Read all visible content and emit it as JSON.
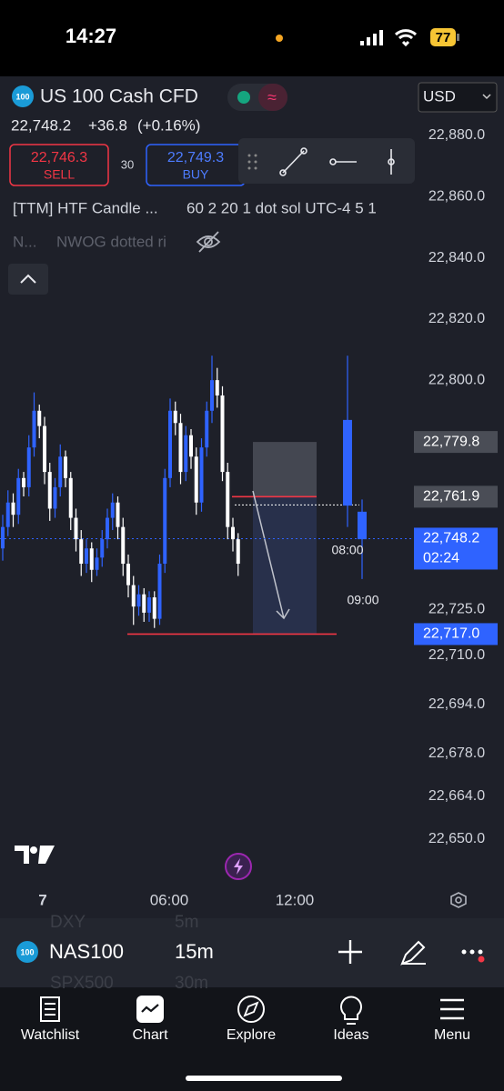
{
  "status_bar": {
    "time": "14:27",
    "battery": "77"
  },
  "header": {
    "badge": "100",
    "symbol": "US 100 Cash CFD",
    "currency": "USD",
    "last": "22,748.2",
    "change": "+36.8",
    "change_pct": "(+0.16%)",
    "sell_price": "22,746.3",
    "sell": "SELL",
    "spread": "30",
    "buy_price": "22,749.3",
    "buy": "BUY"
  },
  "indicators": [
    {
      "name": "[TTM] HTF Candle ...",
      "params": "60 2 20 1 dot sol UTC-4 5 1"
    },
    {
      "name": "N...",
      "params": "NWOG dotted ri"
    }
  ],
  "chart_data": {
    "type": "candlestick",
    "up_color": "#2f63ff",
    "down_color": "#ffffff",
    "ylim": [
      22636,
      22899
    ],
    "yticks": [
      {
        "value": 22880,
        "label": "22,880.0"
      },
      {
        "value": 22860,
        "label": "22,860.0"
      },
      {
        "value": 22840,
        "label": "22,840.0"
      },
      {
        "value": 22820,
        "label": "22,820.0"
      },
      {
        "value": 22800,
        "label": "22,800.0"
      },
      {
        "value": 22725,
        "label": "22,725.0"
      },
      {
        "value": 22710,
        "label": "22,710.0"
      },
      {
        "value": 22694,
        "label": "22,694.0"
      },
      {
        "value": 22678,
        "label": "22,678.0"
      },
      {
        "value": 22664,
        "label": "22,664.0"
      },
      {
        "value": 22650,
        "label": "22,650.0"
      }
    ],
    "xticks": [
      "7",
      "06:00",
      "12:00"
    ],
    "open": [
      22745,
      22752,
      22760,
      22756,
      22768,
      22765,
      22778,
      22790,
      22785,
      22770,
      22758,
      22765,
      22775,
      22768,
      22755,
      22748,
      22740,
      22745,
      22738,
      22742,
      22748,
      22755,
      22760,
      22752,
      22740,
      22733,
      22726,
      22730,
      22724,
      22729,
      22722,
      22740,
      22768,
      22790,
      22786,
      22770,
      22782,
      22775,
      22760,
      22778,
      22790,
      22800,
      22795,
      22770,
      22752,
      22748
    ],
    "high": [
      22756,
      22764,
      22763,
      22771,
      22770,
      22782,
      22796,
      22792,
      22788,
      22773,
      22768,
      22779,
      22777,
      22770,
      22758,
      22751,
      22748,
      22747,
      22745,
      22751,
      22758,
      22763,
      22762,
      22755,
      22743,
      22736,
      22733,
      22732,
      22731,
      22731,
      22743,
      22771,
      22794,
      22793,
      22789,
      22785,
      22784,
      22778,
      22781,
      22793,
      22808,
      22804,
      22798,
      22773,
      22755,
      22750
    ],
    "low": [
      22741,
      22749,
      22752,
      22753,
      22762,
      22762,
      22775,
      22781,
      22766,
      22754,
      22755,
      22762,
      22765,
      22751,
      22744,
      22736,
      22737,
      22734,
      22736,
      22739,
      22745,
      22751,
      22748,
      22736,
      22729,
      22720,
      22723,
      22721,
      22721,
      22719,
      22720,
      22737,
      22765,
      22782,
      22766,
      22767,
      22771,
      22756,
      22757,
      22775,
      22786,
      22791,
      22767,
      22748,
      22744,
      22736
    ],
    "close": [
      22752,
      22760,
      22756,
      22768,
      22765,
      22778,
      22790,
      22785,
      22770,
      22758,
      22765,
      22775,
      22768,
      22755,
      22748,
      22740,
      22745,
      22738,
      22742,
      22748,
      22755,
      22760,
      22752,
      22740,
      22733,
      22726,
      22730,
      22724,
      22729,
      22722,
      22740,
      22768,
      22790,
      22786,
      22770,
      22782,
      22775,
      22760,
      22778,
      22790,
      22800,
      22795,
      22770,
      22752,
      22748,
      22740
    ],
    "htf": {
      "color": "#2f63ff",
      "labels": [
        "08:00",
        "09:00"
      ],
      "open": [
        22759,
        22757
      ],
      "high": [
        22808,
        22761
      ],
      "low": [
        22752,
        22735
      ],
      "close": [
        22787,
        22748
      ]
    },
    "price_labels": [
      {
        "value": 22779.8,
        "label": "22,779.8"
      },
      {
        "value": 22761.9,
        "label": "22,761.9"
      },
      {
        "value": 22748.2,
        "label": "22,748.2",
        "countdown": "02:24"
      },
      {
        "value": 22717.0,
        "label": "22,717.0"
      }
    ]
  },
  "bottom_bar": {
    "symbol": "NAS100",
    "interval": "15m",
    "ghost_symbols": [
      "DXY",
      "SPX500"
    ],
    "ghost_intervals": [
      "5m",
      "30m"
    ]
  },
  "nav": [
    "Watchlist",
    "Chart",
    "Explore",
    "Ideas",
    "Menu"
  ]
}
